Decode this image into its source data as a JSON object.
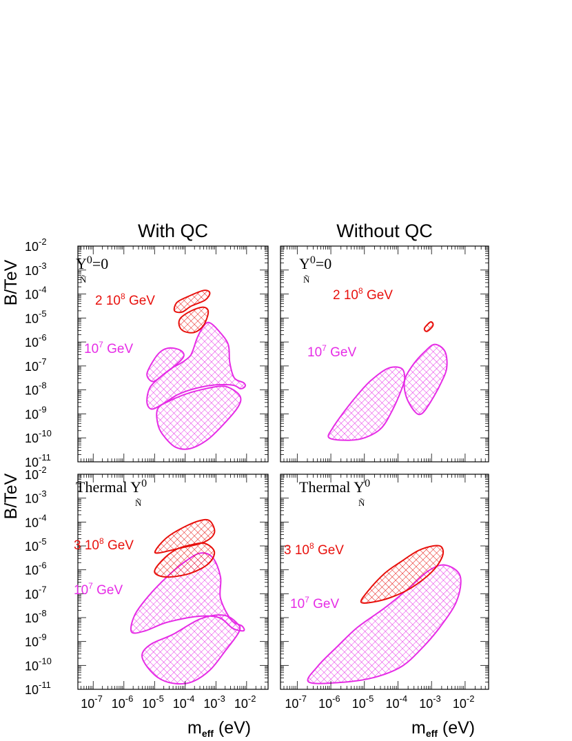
{
  "colors": {
    "red": "#e8100c",
    "magenta": "#e62ce6",
    "frame": "#000000"
  },
  "chart_data": {
    "type": "area",
    "x_label_main": "m",
    "x_label_sub": "eff",
    "x_label_unit": "(eV)",
    "y_label": "B/TeV",
    "x_scale": "log",
    "y_scale": "log",
    "xlim_log10": [
      -7.5,
      -1.3
    ],
    "ylim_log10": [
      -11,
      -2
    ],
    "x_tick_exponents": [
      -7,
      -6,
      -5,
      -4,
      -3,
      -2
    ],
    "y_tick_exponents": [
      -2,
      -3,
      -4,
      -5,
      -6,
      -7,
      -8,
      -9,
      -10,
      -11
    ],
    "tick_base": "10",
    "column_titles": [
      "With QC",
      "Without QC"
    ],
    "panels": [
      {
        "id": "top-left",
        "condition": {
          "prefix": "",
          "symbol": "Y",
          "sup": "0",
          "sub": "Ñ",
          "suffix": "=0"
        },
        "series": [
          {
            "name": "2 10⁸ GeV",
            "label_main": "2 10",
            "label_exp": "8",
            "label_unit": "GeV",
            "color": "red",
            "regions": [
              [
                [
                  -4.27,
                  -4.35
                ],
                [
                  -3.9,
                  -4.1
                ],
                [
                  -3.4,
                  -3.85
                ],
                [
                  -3.2,
                  -3.95
                ],
                [
                  -3.35,
                  -4.25
                ],
                [
                  -3.8,
                  -4.5
                ],
                [
                  -4.1,
                  -4.75
                ],
                [
                  -4.35,
                  -4.7
                ]
              ],
              [
                [
                  -4.15,
                  -5.0
                ],
                [
                  -3.8,
                  -4.7
                ],
                [
                  -3.4,
                  -4.55
                ],
                [
                  -3.25,
                  -4.75
                ],
                [
                  -3.4,
                  -5.3
                ],
                [
                  -3.7,
                  -5.6
                ],
                [
                  -4.05,
                  -5.55
                ],
                [
                  -4.2,
                  -5.3
                ]
              ]
            ]
          },
          {
            "name": "10⁷ GeV",
            "label_main": "10",
            "label_exp": "7",
            "label_unit": "GeV",
            "color": "magenta",
            "regions": [
              [
                [
                  -5.15,
                  -7.9
                ],
                [
                  -4.8,
                  -7.45
                ],
                [
                  -4.45,
                  -7.1
                ],
                [
                  -4.1,
                  -6.85
                ],
                [
                  -3.85,
                  -6.6
                ],
                [
                  -3.75,
                  -6.35
                ],
                [
                  -3.6,
                  -5.8
                ],
                [
                  -3.38,
                  -5.3
                ],
                [
                  -3.2,
                  -5.2
                ],
                [
                  -2.9,
                  -5.55
                ],
                [
                  -2.6,
                  -6.1
                ],
                [
                  -2.55,
                  -6.85
                ],
                [
                  -2.4,
                  -7.5
                ],
                [
                  -2.1,
                  -7.7
                ],
                [
                  -2.05,
                  -7.85
                ],
                [
                  -2.2,
                  -7.95
                ],
                [
                  -2.45,
                  -7.8
                ],
                [
                  -3.1,
                  -7.8
                ],
                [
                  -3.7,
                  -7.95
                ],
                [
                  -4.25,
                  -8.2
                ],
                [
                  -4.75,
                  -8.6
                ],
                [
                  -5.1,
                  -8.8
                ],
                [
                  -5.25,
                  -8.5
                ]
              ],
              [
                [
                  -5.25,
                  -7.35
                ],
                [
                  -5.05,
                  -6.8
                ],
                [
                  -4.8,
                  -6.4
                ],
                [
                  -4.5,
                  -6.25
                ],
                [
                  -4.15,
                  -6.35
                ],
                [
                  -4.05,
                  -6.6
                ],
                [
                  -4.3,
                  -6.95
                ],
                [
                  -4.7,
                  -7.35
                ],
                [
                  -5.05,
                  -7.65
                ]
              ],
              [
                [
                  -4.9,
                  -8.8
                ],
                [
                  -4.5,
                  -8.45
                ],
                [
                  -3.8,
                  -8.1
                ],
                [
                  -2.9,
                  -7.85
                ],
                [
                  -2.5,
                  -7.95
                ],
                [
                  -2.2,
                  -8.3
                ],
                [
                  -2.3,
                  -8.75
                ],
                [
                  -2.8,
                  -9.5
                ],
                [
                  -3.3,
                  -10.1
                ],
                [
                  -3.85,
                  -10.45
                ],
                [
                  -4.3,
                  -10.4
                ],
                [
                  -4.65,
                  -10.0
                ],
                [
                  -4.88,
                  -9.5
                ]
              ]
            ]
          }
        ]
      },
      {
        "id": "top-right",
        "condition": {
          "prefix": "",
          "symbol": "Y",
          "sup": "0",
          "sub": "Ñ",
          "suffix": "=0"
        },
        "series": [
          {
            "name": "2 10⁸ GeV",
            "label_main": "2 10",
            "label_exp": "8",
            "label_unit": "GeV",
            "color": "red",
            "regions": [
              [
                [
                  -3.2,
                  -5.4
                ],
                [
                  -3.05,
                  -5.18
                ],
                [
                  -2.97,
                  -5.2
                ],
                [
                  -2.97,
                  -5.35
                ],
                [
                  -3.12,
                  -5.55
                ],
                [
                  -3.2,
                  -5.52
                ]
              ]
            ]
          },
          {
            "name": "10⁷ GeV",
            "label_main": "10",
            "label_exp": "7",
            "label_unit": "GeV",
            "color": "magenta",
            "regions": [
              [
                [
                  -6.05,
                  -10.0
                ],
                [
                  -5.95,
                  -9.6
                ],
                [
                  -5.6,
                  -8.9
                ],
                [
                  -5.2,
                  -8.2
                ],
                [
                  -4.8,
                  -7.6
                ],
                [
                  -4.3,
                  -7.1
                ],
                [
                  -3.9,
                  -7.1
                ],
                [
                  -3.8,
                  -7.5
                ],
                [
                  -3.9,
                  -8.0
                ],
                [
                  -4.15,
                  -8.8
                ],
                [
                  -4.5,
                  -9.6
                ],
                [
                  -5.0,
                  -10.0
                ],
                [
                  -5.5,
                  -10.1
                ]
              ],
              [
                [
                  -3.5,
                  -8.9
                ],
                [
                  -3.75,
                  -8.3
                ],
                [
                  -3.8,
                  -7.6
                ],
                [
                  -3.55,
                  -6.95
                ],
                [
                  -3.2,
                  -6.4
                ],
                [
                  -2.9,
                  -6.1
                ],
                [
                  -2.6,
                  -6.4
                ],
                [
                  -2.55,
                  -7.1
                ],
                [
                  -2.75,
                  -7.8
                ],
                [
                  -3.05,
                  -8.55
                ],
                [
                  -3.3,
                  -9.0
                ]
              ]
            ]
          }
        ]
      },
      {
        "id": "bottom-left",
        "condition": {
          "prefix": "Thermal",
          "symbol": "Y",
          "sup": "0",
          "sub": "Ñ",
          "suffix": ""
        },
        "series": [
          {
            "name": "3 10⁸ GeV",
            "label_main": "3 10",
            "label_exp": "8",
            "label_unit": "GeV",
            "color": "red",
            "regions": [
              [
                [
                  -4.95,
                  -5.15
                ],
                [
                  -4.6,
                  -4.65
                ],
                [
                  -4.1,
                  -4.25
                ],
                [
                  -3.55,
                  -3.95
                ],
                [
                  -3.2,
                  -3.95
                ],
                [
                  -3.05,
                  -4.45
                ],
                [
                  -3.4,
                  -4.85
                ],
                [
                  -4.2,
                  -5.1
                ],
                [
                  -4.9,
                  -5.3
                ]
              ],
              [
                [
                  -5.0,
                  -6.1
                ],
                [
                  -4.75,
                  -5.6
                ],
                [
                  -4.3,
                  -5.15
                ],
                [
                  -3.8,
                  -4.95
                ],
                [
                  -3.35,
                  -4.9
                ],
                [
                  -3.05,
                  -5.25
                ],
                [
                  -3.25,
                  -5.75
                ],
                [
                  -3.85,
                  -6.15
                ],
                [
                  -4.6,
                  -6.3
                ]
              ]
            ]
          },
          {
            "name": "10⁷ GeV",
            "label_main": "10",
            "label_exp": "7",
            "label_unit": "GeV",
            "color": "magenta",
            "regions": [
              [
                [
                  -5.75,
                  -8.6
                ],
                [
                  -5.65,
                  -7.9
                ],
                [
                  -5.2,
                  -7.1
                ],
                [
                  -4.6,
                  -6.3
                ],
                [
                  -4.0,
                  -5.65
                ],
                [
                  -3.5,
                  -5.3
                ],
                [
                  -3.1,
                  -5.5
                ],
                [
                  -2.85,
                  -6.3
                ],
                [
                  -2.85,
                  -7.2
                ],
                [
                  -2.5,
                  -8.1
                ],
                [
                  -2.15,
                  -8.35
                ],
                [
                  -2.1,
                  -8.55
                ],
                [
                  -2.45,
                  -8.45
                ],
                [
                  -2.9,
                  -8.0
                ],
                [
                  -3.6,
                  -7.95
                ],
                [
                  -4.6,
                  -8.2
                ],
                [
                  -5.3,
                  -8.55
                ]
              ],
              [
                [
                  -5.4,
                  -9.5
                ],
                [
                  -5.1,
                  -9.1
                ],
                [
                  -4.4,
                  -8.7
                ],
                [
                  -3.5,
                  -8.05
                ],
                [
                  -2.75,
                  -7.9
                ],
                [
                  -2.3,
                  -8.25
                ],
                [
                  -2.25,
                  -8.6
                ],
                [
                  -2.7,
                  -9.4
                ],
                [
                  -3.2,
                  -10.2
                ],
                [
                  -3.8,
                  -10.7
                ],
                [
                  -4.4,
                  -10.75
                ],
                [
                  -4.9,
                  -10.5
                ],
                [
                  -5.3,
                  -9.95
                ]
              ]
            ]
          }
        ]
      },
      {
        "id": "bottom-right",
        "condition": {
          "prefix": "Thermal",
          "symbol": "Y",
          "sup": "0",
          "sub": "Ñ",
          "suffix": ""
        },
        "series": [
          {
            "name": "3 10⁸ GeV",
            "label_main": "3 10",
            "label_exp": "8",
            "label_unit": "GeV",
            "color": "red",
            "regions": [
              [
                [
                  -5.1,
                  -7.35
                ],
                [
                  -4.9,
                  -6.9
                ],
                [
                  -4.4,
                  -6.15
                ],
                [
                  -3.9,
                  -5.65
                ],
                [
                  -3.4,
                  -5.2
                ],
                [
                  -2.95,
                  -5.0
                ],
                [
                  -2.7,
                  -5.05
                ],
                [
                  -2.68,
                  -5.45
                ],
                [
                  -3.0,
                  -6.1
                ],
                [
                  -3.6,
                  -6.75
                ],
                [
                  -4.2,
                  -7.15
                ],
                [
                  -4.75,
                  -7.35
                ]
              ]
            ]
          },
          {
            "name": "10⁷ GeV",
            "label_main": "10",
            "label_exp": "7",
            "label_unit": "GeV",
            "color": "magenta",
            "regions": [
              [
                [
                  -6.65,
                  -10.7
                ],
                [
                  -6.4,
                  -10.05
                ],
                [
                  -5.8,
                  -9.2
                ],
                [
                  -5.2,
                  -8.4
                ],
                [
                  -4.4,
                  -7.6
                ],
                [
                  -3.7,
                  -6.8
                ],
                [
                  -3.1,
                  -6.05
                ],
                [
                  -2.6,
                  -5.8
                ],
                [
                  -2.15,
                  -6.25
                ],
                [
                  -2.25,
                  -7.3
                ],
                [
                  -2.75,
                  -8.4
                ],
                [
                  -3.3,
                  -9.3
                ],
                [
                  -3.9,
                  -10.05
                ],
                [
                  -4.7,
                  -10.5
                ],
                [
                  -5.6,
                  -10.7
                ]
              ]
            ]
          }
        ]
      }
    ]
  }
}
